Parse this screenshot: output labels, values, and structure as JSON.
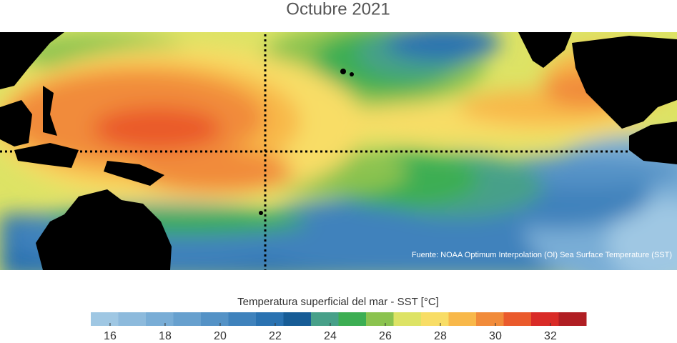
{
  "title": "Octubre 2021",
  "map": {
    "source": "Fuente: NOAA Optimum Interpolation (OI) Sea Surface Temperature (SST)"
  },
  "colorbar": {
    "label": "Temperatura superficial del mar - SST  [°C]",
    "range": [
      15.3,
      33.3
    ],
    "colors": [
      "#9fc7e3",
      "#8dbadc",
      "#79add6",
      "#67a0ce",
      "#5492c6",
      "#3f82bc",
      "#2a72b1",
      "#175c96",
      "#47a089",
      "#3cae53",
      "#8bc34f",
      "#dde365",
      "#f8dd66",
      "#f8b84a",
      "#f18b3a",
      "#ea5a2c",
      "#d92b27",
      "#b01e23"
    ],
    "ticks": [
      16,
      18,
      20,
      22,
      24,
      26,
      28,
      30,
      32
    ]
  }
}
